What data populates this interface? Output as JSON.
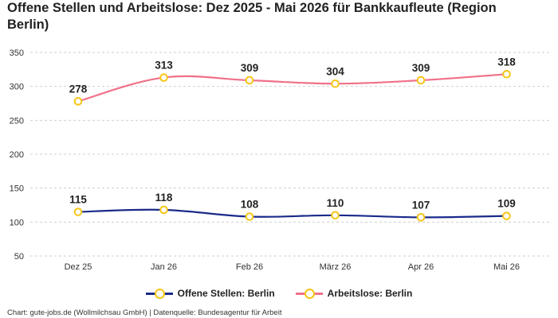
{
  "chart_data": {
    "type": "line",
    "title": "Offene Stellen und Arbeitslose: Dez 2025 - Mai 2026 für Bankkaufleute (Region Berlin)",
    "categories": [
      "Dez 25",
      "Jan 26",
      "Feb 26",
      "März 26",
      "Apr 26",
      "Mai 26"
    ],
    "series": [
      {
        "name": "Offene Stellen: Berlin",
        "values": [
          115,
          118,
          108,
          110,
          107,
          109
        ],
        "color": "#1a2a8a"
      },
      {
        "name": "Arbeitslose: Berlin",
        "values": [
          278,
          313,
          309,
          304,
          309,
          318
        ],
        "color": "#f07088"
      }
    ],
    "ylim": [
      50,
      350
    ],
    "yticks": [
      50,
      100,
      150,
      200,
      250,
      300,
      350
    ],
    "grid": true,
    "legend_position": "bottom",
    "marker_color": "#f5c518"
  },
  "footer": {
    "source": "Chart: gute-jobs.de (Wollmilchsau GmbH) | Datenquelle: Bundesagentur für Arbeit"
  }
}
